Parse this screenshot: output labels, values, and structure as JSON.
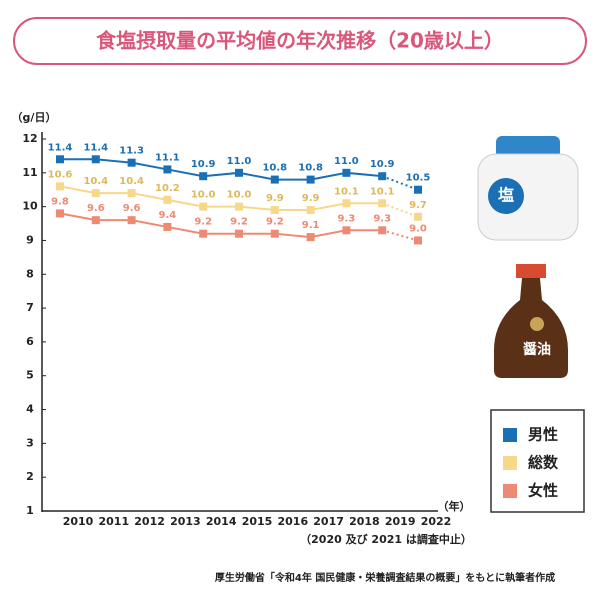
{
  "chart_data": {
    "type": "line",
    "title": "食塩摂取量の平均値の年次推移（20歳以上）",
    "y_axis_label": "（g/日）",
    "x_axis_label": "（年）",
    "note": "（2020 及び 2021 は調査中止）",
    "source": "厚生労働省「令和4年 国民健康・栄養調査結果の概要」をもとに執筆者作成",
    "categories": [
      "2010",
      "2011",
      "2012",
      "2013",
      "2014",
      "2015",
      "2016",
      "2017",
      "2018",
      "2019",
      "2022"
    ],
    "series": [
      {
        "name": "男性",
        "color": "#1a6fb5",
        "values": [
          11.4,
          11.4,
          11.3,
          11.1,
          10.9,
          11.0,
          10.8,
          10.8,
          11.0,
          10.9,
          10.5
        ],
        "value_labels": [
          "11.4",
          "11.4",
          "11.3",
          "11.1",
          "10.9",
          "11.0",
          "10.8",
          "10.8",
          "11.0",
          "10.9",
          "10.5"
        ]
      },
      {
        "name": "総数",
        "color": "#f7d88a",
        "values": [
          10.6,
          10.4,
          10.4,
          10.2,
          10.0,
          10.0,
          9.9,
          9.9,
          10.1,
          10.1,
          9.7
        ],
        "value_labels": [
          "10.6",
          "10.4",
          "10.4",
          "10.2",
          "10.0",
          "10.0",
          "9.9",
          "9.9",
          "10.1",
          "10.1",
          "9.7"
        ]
      },
      {
        "name": "女性",
        "color": "#ee8a73",
        "values": [
          9.8,
          9.6,
          9.6,
          9.4,
          9.2,
          9.2,
          9.2,
          9.1,
          9.3,
          9.3,
          9.0
        ],
        "value_labels": [
          "9.8",
          "9.6",
          "9.6",
          "9.4",
          "9.2",
          "9.2",
          "9.2",
          "9.1",
          "9.3",
          "9.3",
          "9.0"
        ]
      }
    ],
    "ylim": [
      1,
      12
    ],
    "yticks": [
      1,
      2,
      3,
      4,
      5,
      6,
      7,
      8,
      9,
      10,
      11,
      12
    ],
    "last_segment_dotted": true,
    "legend": "bottom-right"
  },
  "illustrations": {
    "salt": "塩",
    "soy_sauce": "醤油"
  }
}
